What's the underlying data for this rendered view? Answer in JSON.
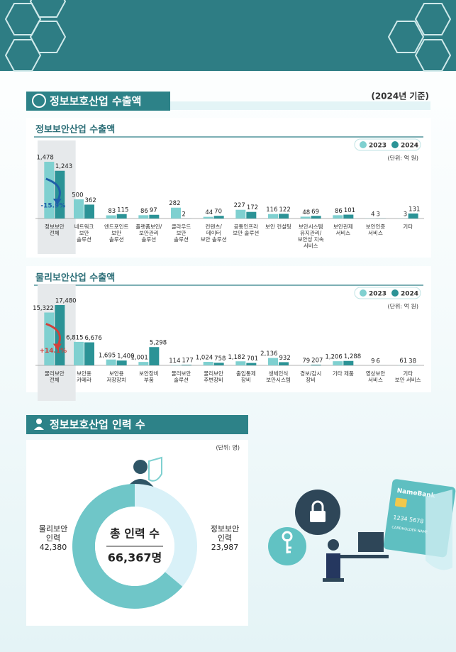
{
  "sections": [
    {
      "title": "정보보호산업 수출액",
      "note": "(2024년 기준)"
    },
    {
      "title": "정보보호산업 인력 수"
    }
  ],
  "chart_data": [
    {
      "type": "bar",
      "title": "정보보안산업 수출액",
      "unit": "(단위: 억 원)",
      "legend": "top-right",
      "categories": [
        "정보보안\n전체",
        "네트워크\n보안\n솔루션",
        "엔드포인트\n보안\n솔루션",
        "플랫폼보안/\n보안관리\n솔루션",
        "클라우드\n보안\n솔루션",
        "컨텐츠/\n데이터\n보안 솔루션",
        "공통인프라\n보안 솔루션",
        "보안 컨설팅",
        "보안시스템\n유지관리/\n보안성 지속\n서비스",
        "보안관제\n서비스",
        "보안인증\n서비스",
        "기타"
      ],
      "series": [
        {
          "name": "2023",
          "color": "#7fd0d0",
          "values": [
            1478,
            500,
            83,
            86,
            282,
            44,
            227,
            116,
            48,
            86,
            4,
            3
          ],
          "value_labels": [
            "1,478",
            "500",
            "83",
            "86",
            "282",
            "44",
            "227",
            "116",
            "48",
            "86",
            "4",
            "3"
          ]
        },
        {
          "name": "2024",
          "color": "#2b9396",
          "values": [
            1243,
            362,
            115,
            97,
            2,
            70,
            172,
            122,
            69,
            101,
            3,
            131
          ],
          "value_labels": [
            "1,243",
            "362",
            "115",
            "97",
            "2",
            "70",
            "172",
            "122",
            "69",
            "101",
            "3",
            "131"
          ]
        }
      ],
      "annotation": "-15.9%",
      "annotation_color": "#1f5fa8"
    },
    {
      "type": "bar",
      "title": "물리보안산업 수출액",
      "unit": "(단위: 억 원)",
      "legend": "top-right",
      "categories": [
        "물리보안\n전체",
        "보안용\n카메라",
        "보안용\n저장장치",
        "보안장비\n부품",
        "물리보안\n솔루션",
        "물리보안\n주변장비",
        "출입통제\n장비",
        "생체인식\n보안시스템",
        "경보/감시\n장비",
        "기타 제품",
        "영상보안\n서비스",
        "기타\n보안 서비스"
      ],
      "series": [
        {
          "name": "2023",
          "color": "#7fd0d0",
          "values": [
            15322,
            6815,
            1695,
            1001,
            114,
            1024,
            1182,
            2136,
            79,
            1206,
            9,
            61
          ],
          "value_labels": [
            "15,322",
            "6,815",
            "1,695",
            "1,001",
            "114",
            "1,024",
            "1,182",
            "2,136",
            "79",
            "1,206",
            "9",
            "61"
          ]
        },
        {
          "name": "2024",
          "color": "#2b9396",
          "values": [
            17480,
            6676,
            1400,
            5298,
            177,
            758,
            701,
            932,
            207,
            1288,
            6,
            38
          ],
          "value_labels": [
            "17,480",
            "6,676",
            "1,400",
            "5,298",
            "177",
            "758",
            "701",
            "932",
            "207",
            "1,288",
            "6",
            "38"
          ]
        }
      ],
      "annotation": "+14.1%",
      "annotation_color": "#d2403a"
    },
    {
      "type": "pie",
      "unit": "(단위: 명)",
      "center_title": "총 인력 수",
      "total_label": "66,367명",
      "categories": [
        "물리보안\n인력",
        "정보보안\n인력"
      ],
      "values": [
        42380,
        23987
      ],
      "value_labels": [
        "42,380",
        "23,987"
      ],
      "colors": [
        "#6fc6c8",
        "#d9f1f8"
      ]
    }
  ],
  "illustration": {
    "bank": "NameBank",
    "card_number": "1234 5678",
    "holder": "CARDHOLDER NAME"
  }
}
